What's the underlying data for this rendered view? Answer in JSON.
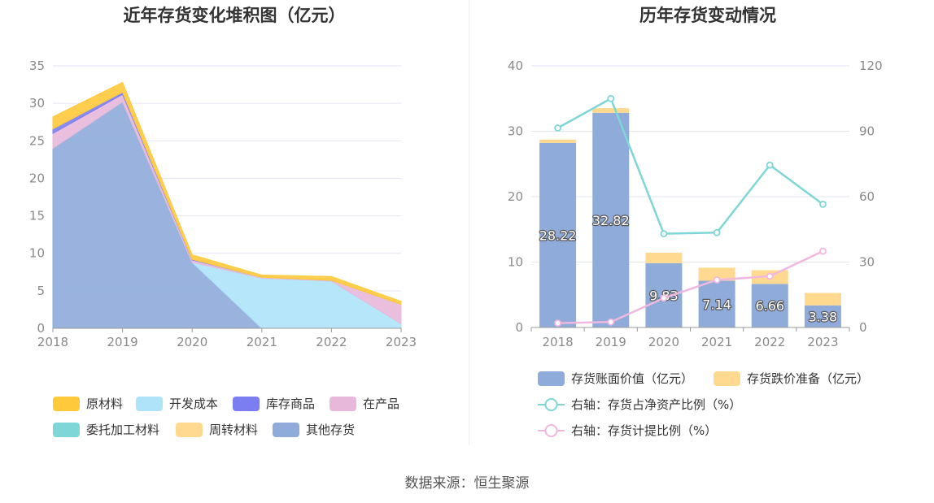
{
  "source": "数据来源：恒生聚源",
  "chart_data": [
    {
      "type": "area",
      "stacked": true,
      "title": "近年存货变化堆积图（亿元）",
      "categories": [
        "2018",
        "2019",
        "2020",
        "2021",
        "2022",
        "2023"
      ],
      "ylim": [
        0,
        35
      ],
      "yticks": [
        0,
        5,
        10,
        15,
        20,
        25,
        30,
        35
      ],
      "grid": true,
      "legend_position": "bottom",
      "series": [
        {
          "name": "其他存货",
          "color": "#8eabda",
          "values": [
            24.0,
            30.2,
            8.8,
            0.0,
            0.0,
            0.0
          ]
        },
        {
          "name": "开发成本",
          "color": "#aee3fa",
          "values": [
            0.0,
            0.0,
            0.0,
            6.7,
            6.3,
            0.6
          ]
        },
        {
          "name": "在产品",
          "color": "#e8b8da",
          "values": [
            2.0,
            1.0,
            0.3,
            0.1,
            0.1,
            2.6
          ]
        },
        {
          "name": "库存商品",
          "color": "#7b7ef0",
          "values": [
            0.6,
            0.3,
            0.1,
            0.0,
            0.0,
            0.0
          ]
        },
        {
          "name": "委托加工材料",
          "color": "#7fd6d6",
          "values": [
            0.0,
            0.0,
            0.0,
            0.0,
            0.0,
            0.0
          ]
        },
        {
          "name": "周转材料",
          "color": "#ffd98f",
          "values": [
            0.0,
            0.0,
            0.0,
            0.0,
            0.0,
            0.0
          ]
        },
        {
          "name": "原材料",
          "color": "#ffc93c",
          "values": [
            1.6,
            1.3,
            0.6,
            0.3,
            0.5,
            0.4
          ]
        }
      ],
      "legend_order": [
        "原材料",
        "开发成本",
        "库存商品",
        "在产品",
        "委托加工材料",
        "周转材料",
        "其他存货"
      ]
    },
    {
      "type": "bar+line",
      "title": "历年存货变动情况",
      "categories": [
        "2018",
        "2019",
        "2020",
        "2021",
        "2022",
        "2023"
      ],
      "ylim_left": [
        0,
        40
      ],
      "yticks_left": [
        0,
        10,
        20,
        30,
        40
      ],
      "ylim_right": [
        0,
        120
      ],
      "yticks_right": [
        0,
        30,
        60,
        90,
        120
      ],
      "grid": true,
      "legend_position": "bottom",
      "bars": [
        {
          "name": "存货账面价值（亿元）",
          "color": "#8eabda",
          "values": [
            28.22,
            32.82,
            9.83,
            7.14,
            6.66,
            3.38
          ],
          "labels": [
            "28.22",
            "32.82",
            "9.83",
            "7.14",
            "6.66",
            "3.38"
          ]
        },
        {
          "name": "存货跌价准备（亿元）",
          "color": "#ffd98f",
          "values": [
            0.5,
            0.7,
            1.6,
            2.0,
            2.1,
            1.9
          ]
        }
      ],
      "lines": [
        {
          "name": "右轴：存货占净资产比例（%）",
          "color": "#7fd6d6",
          "axis": "right",
          "values": [
            91.5,
            105.0,
            43.0,
            43.5,
            74.5,
            56.5
          ]
        },
        {
          "name": "右轴：存货计提比例（%）",
          "color": "#f0b8de",
          "axis": "right",
          "values": [
            2.0,
            2.5,
            13.5,
            21.8,
            23.5,
            35.0
          ]
        }
      ]
    }
  ]
}
